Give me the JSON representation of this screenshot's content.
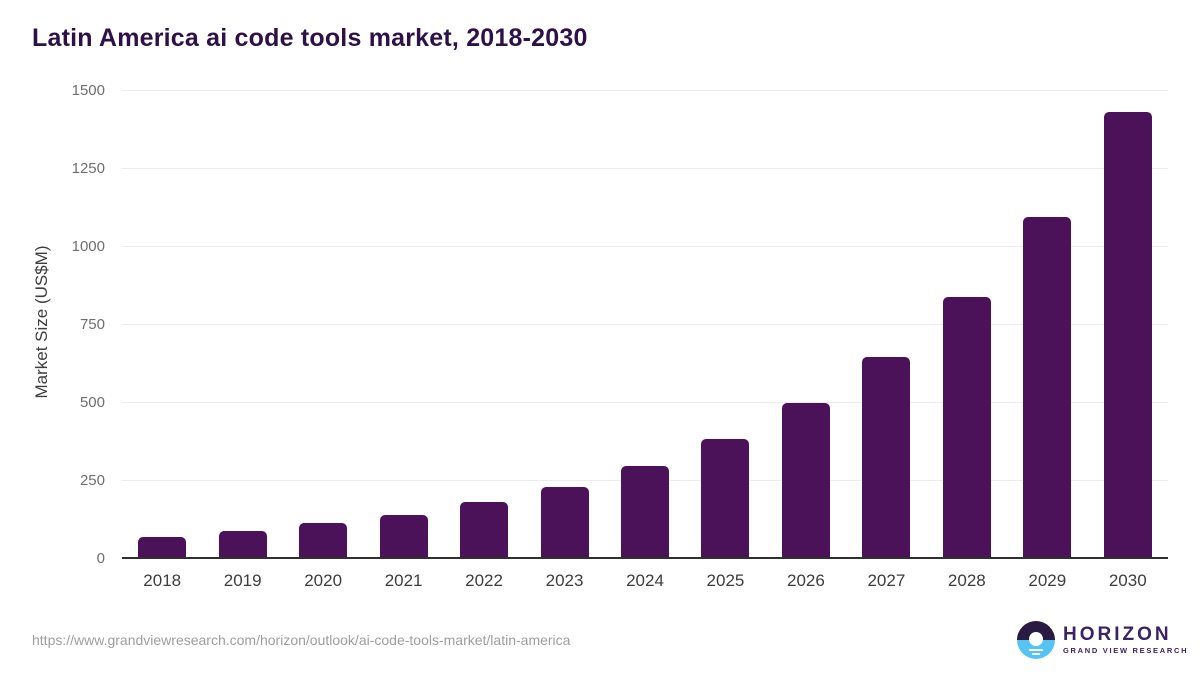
{
  "header": {
    "title": "Latin America ai code tools market, 2018-2030"
  },
  "chart_data": {
    "type": "bar",
    "title": "Latin America ai code tools market, 2018-2030",
    "categories": [
      "2018",
      "2019",
      "2020",
      "2021",
      "2022",
      "2023",
      "2024",
      "2025",
      "2026",
      "2027",
      "2028",
      "2029",
      "2030"
    ],
    "values": [
      67,
      88,
      112,
      139,
      181,
      228,
      295,
      383,
      497,
      645,
      838,
      1093,
      1430
    ],
    "xlabel": "",
    "ylabel": "Market Size (US$M)",
    "ylim": [
      0,
      1500
    ],
    "yticks": [
      0,
      250,
      500,
      750,
      1000,
      1250,
      1500
    ],
    "grid": true,
    "legend": false,
    "bar_color": "#4b1259"
  },
  "footer": {
    "url": "https://www.grandviewresearch.com/horizon/outlook/ai-code-tools-market/latin-america",
    "logo": {
      "name": "HORIZON",
      "subtitle": "GRAND VIEW RESEARCH"
    }
  },
  "colors": {
    "title": "#2e1247",
    "bar": "#4b1259",
    "gridline": "#ececec",
    "axis_line": "#2f2f2f",
    "ytick_label": "#6e6e6e",
    "xtick_label": "#3d3d3d",
    "url_text": "#9e9e9e",
    "logo_purple": "#3b2266",
    "logo_dark_half": "#2b1a42",
    "logo_blue_half": "#57c3f2"
  }
}
